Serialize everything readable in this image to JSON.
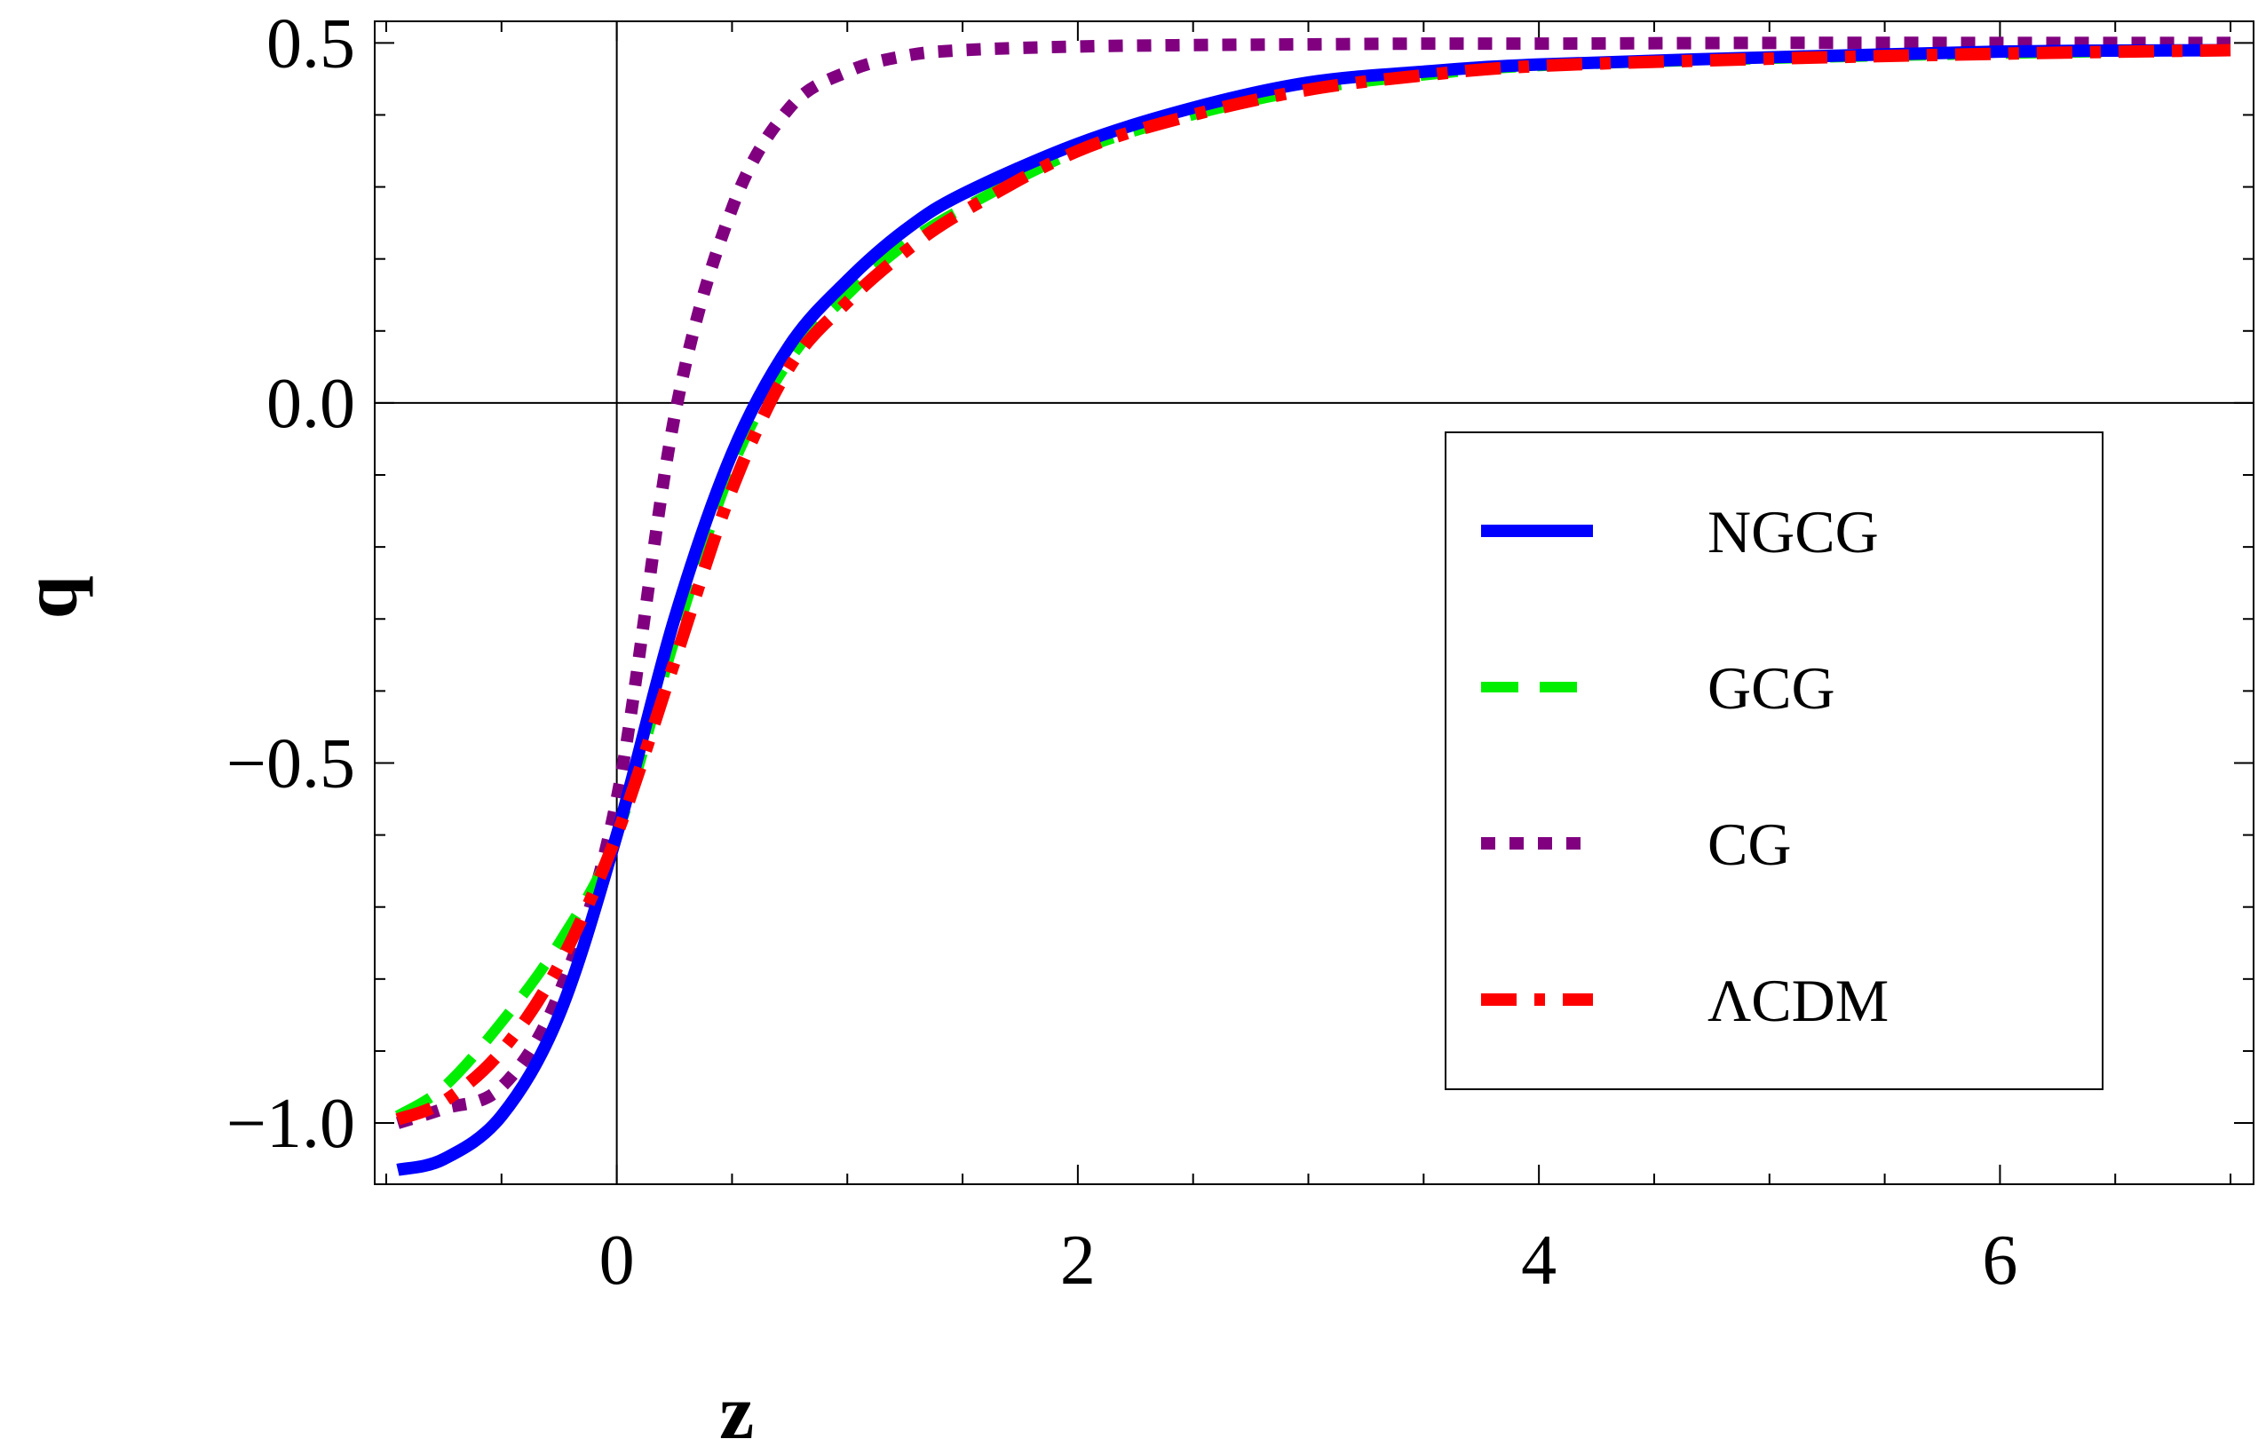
{
  "chart_data": {
    "type": "line",
    "title": "",
    "xlabel": "z",
    "ylabel": "q",
    "xlim": [
      -1.05,
      7.1
    ],
    "ylim": [
      -1.085,
      0.53
    ],
    "grid": false,
    "legend_position": "right-center",
    "x_ticks": [
      0,
      2,
      4,
      6
    ],
    "x_tick_labels": [
      "0",
      "2",
      "4",
      "6"
    ],
    "y_ticks": [
      -1.0,
      -0.5,
      0.0,
      0.5
    ],
    "y_tick_labels": [
      "−1.0",
      "−0.5",
      "0.0",
      "0.5"
    ],
    "x": [
      -0.95,
      -0.75,
      -0.5,
      -0.25,
      0,
      0.25,
      0.5,
      0.75,
      1,
      1.25,
      1.5,
      2,
      2.5,
      3,
      3.5,
      4,
      5,
      6,
      7
    ],
    "series": [
      {
        "name": "NGCG",
        "color": "#0000ff",
        "dash": "solid",
        "values": [
          -1.065,
          -1.05,
          -0.99,
          -0.85,
          -0.6,
          -0.3,
          -0.07,
          0.08,
          0.17,
          0.24,
          0.29,
          0.36,
          0.41,
          0.445,
          0.46,
          0.47,
          0.48,
          0.488,
          0.49
        ]
      },
      {
        "name": "GCG",
        "color": "#00ee00",
        "dash": "long-dash",
        "values": [
          -0.99,
          -0.95,
          -0.86,
          -0.75,
          -0.6,
          -0.33,
          -0.09,
          0.06,
          0.15,
          0.22,
          0.27,
          0.35,
          0.4,
          0.435,
          0.455,
          0.468,
          0.478,
          0.485,
          0.49
        ]
      },
      {
        "name": "CG",
        "color": "#800080",
        "dash": "dotted",
        "values": [
          -1.0,
          -0.98,
          -0.95,
          -0.82,
          -0.55,
          -0.02,
          0.27,
          0.41,
          0.46,
          0.482,
          0.49,
          0.495,
          0.497,
          0.498,
          0.499,
          0.499,
          0.5,
          0.5,
          0.5
        ]
      },
      {
        "name": "ΛCDM",
        "color": "#ff0000",
        "dash": "dash-dot",
        "values": [
          -0.995,
          -0.97,
          -0.9,
          -0.78,
          -0.6,
          -0.36,
          -0.12,
          0.05,
          0.14,
          0.21,
          0.265,
          0.35,
          0.4,
          0.435,
          0.455,
          0.468,
          0.478,
          0.485,
          0.49
        ]
      }
    ]
  }
}
